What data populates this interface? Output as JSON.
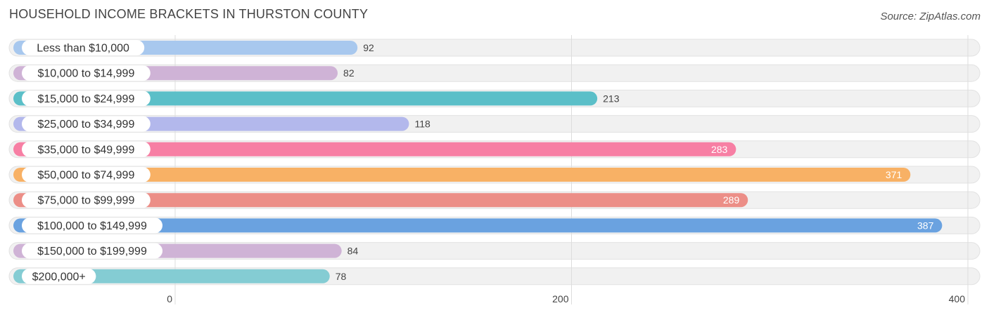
{
  "chart_data": {
    "type": "bar",
    "orientation": "horizontal",
    "title": "HOUSEHOLD INCOME BRACKETS IN THURSTON COUNTY",
    "source": "Source: ZipAtlas.com",
    "categories": [
      "Less than $10,000",
      "$10,000 to $14,999",
      "$15,000 to $24,999",
      "$25,000 to $34,999",
      "$35,000 to $49,999",
      "$50,000 to $74,999",
      "$75,000 to $99,999",
      "$100,000 to $149,999",
      "$150,000 to $199,999",
      "$200,000+"
    ],
    "values": [
      92,
      82,
      213,
      118,
      283,
      371,
      289,
      387,
      84,
      78
    ],
    "value_labels": [
      "92",
      "82",
      "213",
      "118",
      "283",
      "371",
      "289",
      "387",
      "84",
      "78"
    ],
    "colors": [
      "#a8c8ee",
      "#cfb3d6",
      "#5bbfc8",
      "#b3b8ec",
      "#f77fa4",
      "#f8b165",
      "#ec8e87",
      "#6aa2e0",
      "#cfb3d6",
      "#84ccd3"
    ],
    "xlim": [
      0,
      400
    ],
    "xticks": [
      0,
      200,
      400
    ],
    "xtick_labels": [
      "0",
      "200",
      "400"
    ],
    "grid": true
  }
}
